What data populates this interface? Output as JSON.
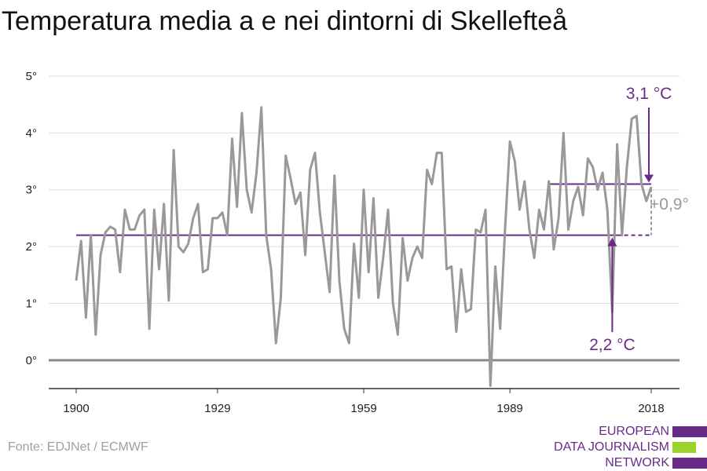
{
  "chart_data": {
    "type": "line",
    "title": "Temperatura media a e nei dintorni di Skellefteå",
    "x_range": [
      1900,
      2018
    ],
    "ylim": [
      -0.5,
      5
    ],
    "y_ticks": [
      0,
      1,
      2,
      3,
      4,
      5
    ],
    "y_tick_labels": [
      "0°",
      "1°",
      "2°",
      "3°",
      "4°",
      "5°"
    ],
    "x_ticks": [
      1900,
      1929,
      1959,
      1989,
      2018
    ],
    "x_tick_labels": [
      "1900",
      "1929",
      "1959",
      "1989",
      "2018"
    ],
    "grid": "horizontal",
    "line_color": "#999999",
    "accent_color": "#6a2a8a",
    "series": [
      {
        "x": [
          1900,
          1901,
          1902,
          1903,
          1904,
          1905,
          1906,
          1907,
          1908,
          1909,
          1910,
          1911,
          1912,
          1913,
          1914,
          1915,
          1916,
          1917,
          1918,
          1919,
          1920,
          1921,
          1922,
          1923,
          1924,
          1925,
          1926,
          1927,
          1928,
          1929,
          1930,
          1931,
          1932,
          1933,
          1934,
          1935,
          1936,
          1937,
          1938,
          1939,
          1940,
          1941,
          1942,
          1943,
          1944,
          1945,
          1946,
          1947,
          1948,
          1949,
          1950,
          1951,
          1952,
          1953,
          1954,
          1955,
          1956,
          1957,
          1958,
          1959,
          1960,
          1961,
          1962,
          1963,
          1964,
          1965,
          1966,
          1967,
          1968,
          1969,
          1970,
          1971,
          1972,
          1973,
          1974,
          1975,
          1976,
          1977,
          1978,
          1979,
          1980,
          1981,
          1982,
          1983,
          1984,
          1985,
          1986,
          1987,
          1988,
          1989,
          1990,
          1991,
          1992,
          1993,
          1994,
          1995,
          1996,
          1997,
          1998,
          1999,
          2000,
          2001,
          2002,
          2003,
          2004,
          2005,
          2006,
          2007,
          2008,
          2009,
          2010,
          2011,
          2012,
          2013,
          2014,
          2015,
          2016,
          2017,
          2018
        ],
        "y": [
          1.4,
          2.1,
          0.75,
          2.2,
          0.45,
          1.85,
          2.25,
          2.35,
          2.3,
          1.55,
          2.65,
          2.3,
          2.3,
          2.55,
          2.65,
          0.55,
          2.65,
          1.6,
          2.75,
          1.05,
          3.7,
          2.0,
          1.9,
          2.05,
          2.5,
          2.75,
          1.55,
          1.6,
          2.5,
          2.5,
          2.6,
          2.2,
          3.9,
          2.7,
          4.35,
          3.0,
          2.6,
          3.3,
          4.45,
          2.2,
          1.6,
          0.3,
          1.1,
          3.6,
          3.2,
          2.75,
          2.95,
          1.85,
          3.35,
          3.65,
          2.6,
          1.9,
          1.2,
          3.25,
          1.4,
          0.55,
          0.3,
          2.05,
          1.1,
          3.0,
          1.55,
          2.85,
          1.1,
          1.8,
          2.65,
          1.0,
          0.45,
          2.15,
          1.4,
          1.8,
          2.0,
          1.8,
          3.35,
          3.1,
          3.65,
          3.65,
          1.6,
          1.65,
          0.5,
          1.6,
          0.85,
          0.9,
          2.3,
          2.25,
          2.65,
          -0.45,
          1.65,
          0.55,
          2.3,
          3.85,
          3.5,
          2.65,
          3.15,
          2.3,
          1.8,
          2.65,
          2.3,
          3.15,
          1.95,
          2.5,
          4.0,
          2.3,
          2.8,
          3.05,
          2.55,
          3.55,
          3.4,
          3.0,
          3.3,
          2.65,
          0.85,
          3.8,
          2.2,
          3.4,
          4.25,
          4.3,
          3.1,
          2.8,
          3.05
        ]
      }
    ],
    "annotations": {
      "baseline_value": 2.2,
      "baseline_x": [
        1900,
        2018
      ],
      "baseline_solid_until": 2011,
      "recent_value": 3.1,
      "recent_x": [
        1997,
        2018
      ],
      "recent_label": "3,1 °C",
      "baseline_label": "2,2 °C",
      "diff_label": "+0,9°",
      "baseline_arrow_x": 2010
    }
  },
  "source": "Fonte: EDJNet / ECMWF",
  "logo": {
    "lines": [
      "EUROPEAN",
      "DATA JOURNALISM",
      "NETWORK"
    ],
    "colors": [
      "#6a2a8a",
      "#9bd32b",
      "#6a2a8a"
    ]
  }
}
